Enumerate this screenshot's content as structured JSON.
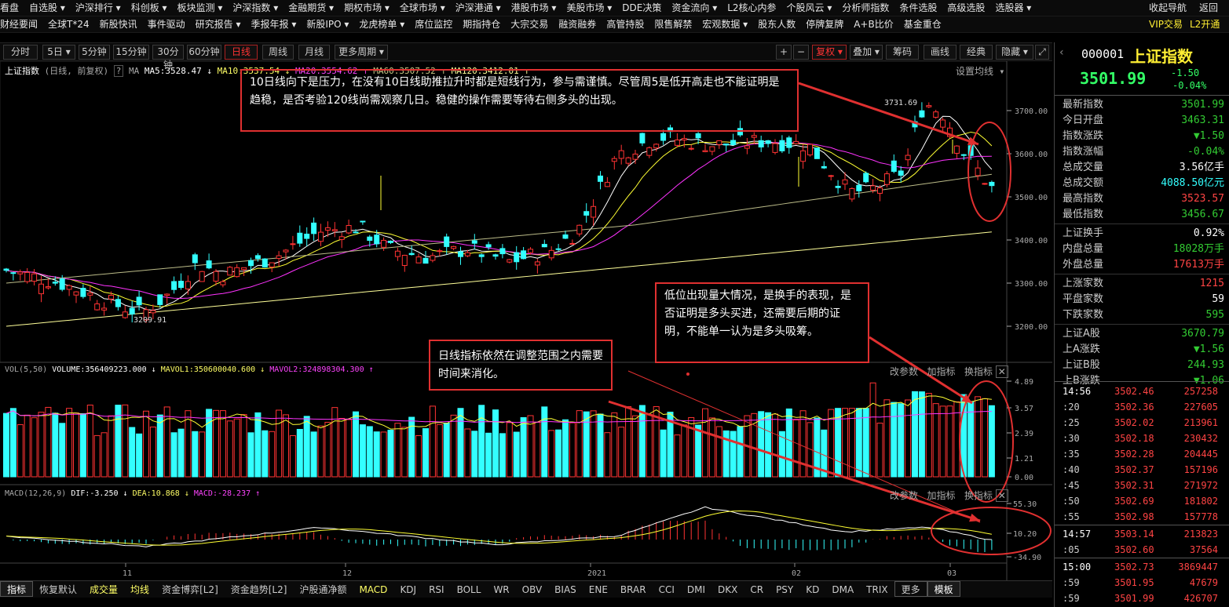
{
  "menu_row1": [
    "看盘",
    "自选股 ▾",
    "沪深排行 ▾",
    "科创板 ▾",
    "板块监测 ▾",
    "沪深指数 ▾",
    "金融期货 ▾",
    "期权市场 ▾",
    "全球市场 ▾",
    "沪深港通 ▾",
    "港股市场 ▾",
    "美股市场 ▾",
    "DDE决策",
    "资金流向 ▾",
    "L2核心内参",
    "个股风云 ▾",
    "分析师指数",
    "条件选股",
    "高级选股",
    "选股器 ▾",
    "收起导航",
    "返回"
  ],
  "menu_row2": [
    "财经要闻",
    "全球T*24",
    "新股快讯",
    "事件驱动",
    "研究报告 ▾",
    "季报年报 ▾",
    "新股IPO ▾",
    "龙虎榜单 ▾",
    "席位监控",
    "期指持仓",
    "大宗交易",
    "融资融券",
    "高管持股",
    "限售解禁",
    "宏观数据 ▾",
    "股东人数",
    "停牌复牌",
    "A+B比价",
    "基金重仓",
    "VIP交易",
    "L2开通"
  ],
  "toolbar": {
    "periods": [
      "分时",
      "5日 ▾",
      "5分钟",
      "15分钟",
      "30分钟",
      "60分钟",
      "日线",
      "周线",
      "月线",
      "更多周期 ▾"
    ],
    "active_period": "日线",
    "right": [
      "+",
      "−",
      "复权 ▾",
      "叠加 ▾",
      "筹码",
      "画线",
      "经典",
      "隐藏 ▾"
    ]
  },
  "main_chart": {
    "title": "上证指数",
    "mode": "(日线, 前复权)",
    "ma_label": "MA",
    "ma5": "MA5:3528.47 ↓",
    "ma10": "MA10:3537.54 ↓",
    "ma20": "MA20:3554.62 ↑",
    "ma60": "MA60:3507.52 ↑",
    "ma120": "MA120:3412.01 ↑",
    "settings": "设置均线 ▾",
    "high_label": "3731.69",
    "low_label": "3209.91",
    "yticks": [
      "3700.00",
      "3600.00",
      "3500.00",
      "3400.00",
      "3300.00",
      "3200.00"
    ]
  },
  "vol_panel": {
    "vol": "VOL(5,50)",
    "volume": "VOLUME:356409223.000 ↓",
    "mavol1": "MAVOL1:350600040.600 ↓",
    "mavol2": "MAVOL2:324898304.300 ↑",
    "buttons": [
      "改参数",
      "加指标",
      "换指标"
    ],
    "yticks": [
      "4.89",
      "3.57",
      "2.39",
      "1.21",
      "0.00"
    ]
  },
  "macd_panel": {
    "macd": "MACD(12,26,9)",
    "dif": "DIF:-3.250 ↓",
    "dea": "DEA:10.868 ↓",
    "macdv": "MACD:-28.237 ↑",
    "buttons": [
      "改参数",
      "加指标",
      "换指标"
    ],
    "yticks": [
      "55.30",
      "10.20",
      "-34.90"
    ]
  },
  "xaxis": [
    "11",
    "12",
    "2021",
    "02",
    "03"
  ],
  "annotations": {
    "a1": "10日线向下是压力，在没有10日线助推拉升时都是短线行为，参与需谨慎。尽管周5是低开高走也不能证明是趋稳，是否考验120线尚需观察几日。稳健的操作需要等待右侧多头的出现。",
    "a2": "低位出现量大情况，是换手的表现，是否证明是多头买进，还需要后期的证明，不能单一认为是多头吸筹。",
    "a3": "日线指标依然在调整范围之内需要时间来消化。"
  },
  "bottom_tabs": [
    "指标",
    "恢复默认",
    "成交量",
    "均线",
    "资金博弈[L2]",
    "资金趋势[L2]",
    "沪股通净额",
    "MACD",
    "KDJ",
    "RSI",
    "BOLL",
    "WR",
    "OBV",
    "BIAS",
    "ENE",
    "BRAR",
    "CCI",
    "DMI",
    "DKX",
    "CR",
    "PSY",
    "KD",
    "DMA",
    "TRIX",
    "更多",
    "模板"
  ],
  "quote": {
    "code": "000001",
    "name": "上证指数",
    "price": "3501.99",
    "change": "-1.50",
    "pct": "-0.04%",
    "rows": [
      {
        "label": "最新指数",
        "value": "3501.99",
        "c": "dn"
      },
      {
        "label": "今日开盘",
        "value": "3463.31",
        "c": "dn"
      },
      {
        "label": "指数涨跌",
        "value": "▼1.50",
        "c": "dn"
      },
      {
        "label": "指数涨幅",
        "value": "-0.04%",
        "c": "dn"
      },
      {
        "label": "总成交量",
        "value": "3.56亿手",
        "c": "wh"
      },
      {
        "label": "总成交额",
        "value": "4088.50亿元",
        "c": "cy"
      },
      {
        "label": "最高指数",
        "value": "3523.57",
        "c": "up"
      },
      {
        "label": "最低指数",
        "value": "3456.67",
        "c": "dn"
      },
      {
        "label": "上证换手",
        "value": "0.92%",
        "c": "wh"
      },
      {
        "label": "内盘总量",
        "value": "18028万手",
        "c": "dn"
      },
      {
        "label": "外盘总量",
        "value": "17613万手",
        "c": "up"
      },
      {
        "label": "上涨家数",
        "value": "1215",
        "c": "up"
      },
      {
        "label": "平盘家数",
        "value": "59",
        "c": "wh"
      },
      {
        "label": "下跌家数",
        "value": "595",
        "c": "dn"
      },
      {
        "label": "上证A股",
        "value": "3670.79",
        "c": "dn"
      },
      {
        "label": "上A涨跌",
        "value": "▼1.56",
        "c": "dn"
      },
      {
        "label": "上证B股",
        "value": "244.93",
        "c": "dn"
      },
      {
        "label": "上B涨跌",
        "value": "▼1.06",
        "c": "dn"
      }
    ],
    "ticks": [
      {
        "t": "14:56",
        "p": "3502.46",
        "v": "257258"
      },
      {
        "t": ":20",
        "p": "3502.36",
        "v": "227605"
      },
      {
        "t": ":25",
        "p": "3502.02",
        "v": "213961"
      },
      {
        "t": ":30",
        "p": "3502.18",
        "v": "230432"
      },
      {
        "t": ":35",
        "p": "3502.28",
        "v": "204445"
      },
      {
        "t": ":40",
        "p": "3502.37",
        "v": "157196"
      },
      {
        "t": ":45",
        "p": "3502.31",
        "v": "271972"
      },
      {
        "t": ":50",
        "p": "3502.69",
        "v": "181802"
      },
      {
        "t": ":55",
        "p": "3502.98",
        "v": "157778"
      },
      {
        "t": "14:57",
        "p": "3503.14",
        "v": "213823"
      },
      {
        "t": ":05",
        "p": "3502.60",
        "v": "37564"
      },
      {
        "t": "15:00",
        "p": "3502.73",
        "v": "3869447"
      },
      {
        "t": ":59",
        "p": "3501.95",
        "v": "47679"
      },
      {
        "t": ":59",
        "p": "3501.99",
        "v": "426707"
      }
    ]
  },
  "colors": {
    "up": "#ff3333",
    "down": "#33ffff",
    "ma5": "#ffffff",
    "ma10": "#ffff33",
    "ma20": "#ff33ff",
    "ma60": "#999966",
    "ma120": "#ffff99",
    "anno": "#e03030"
  }
}
